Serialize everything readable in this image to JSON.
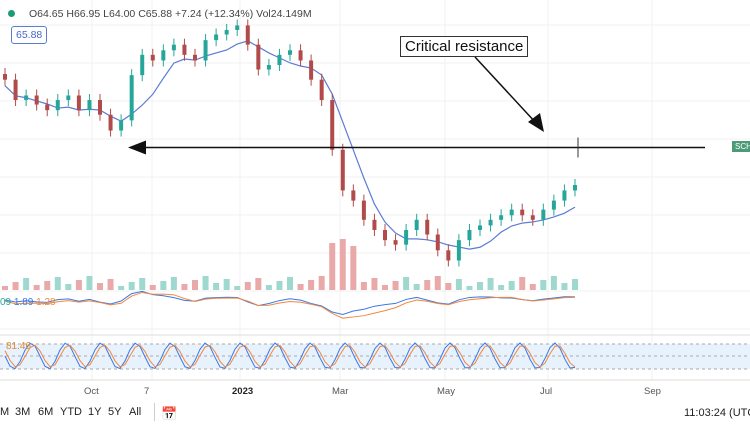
{
  "legend": {
    "open": "O64.65",
    "high": "H66.95",
    "low": "L64.00",
    "close": "C65.88",
    "change": "+7.24 (+12.34%)",
    "volume": "Vol24.149M"
  },
  "last_price": "65.88",
  "annotation": "Critical resistance",
  "symbol_tag": "SCH",
  "macd": {
    "v1": "09",
    "v2": "1.89",
    "v3": "1.28"
  },
  "stoch": {
    "value": "81.46"
  },
  "x_labels": [
    {
      "t": "Oct",
      "x": 92
    },
    {
      "t": "7",
      "x": 152
    },
    {
      "t": "2023",
      "x": 240
    },
    {
      "t": "Mar",
      "x": 340
    },
    {
      "t": "May",
      "x": 445
    },
    {
      "t": "Jul",
      "x": 548
    },
    {
      "t": "Sep",
      "x": 652
    }
  ],
  "ranges": [
    "M",
    "3M",
    "6M",
    "YTD",
    "1Y",
    "5Y",
    "All"
  ],
  "clock": "11:03:24 (UTC",
  "colors": {
    "up": "#26a69a",
    "down": "#b14a4a",
    "ma": "#5b7bd5",
    "macd": "#3b78e7",
    "signal": "#f0883e"
  },
  "resistance_price": 69.2,
  "closes": [
    75.2,
    73.4,
    73.8,
    73.0,
    72.5,
    73.4,
    73.8,
    72.5,
    73.4,
    72.1,
    70.7,
    71.6,
    75.6,
    77.4,
    76.9,
    77.8,
    78.3,
    77.4,
    76.9,
    78.7,
    79.2,
    79.6,
    80.0,
    78.3,
    76.1,
    76.5,
    77.4,
    77.8,
    76.9,
    75.2,
    73.4,
    69.0,
    65.4,
    64.5,
    62.8,
    61.9,
    61.0,
    60.6,
    61.9,
    62.8,
    61.5,
    60.1,
    59.2,
    61.0,
    61.9,
    62.3,
    62.8,
    63.2,
    63.7,
    63.2,
    62.8,
    63.7,
    64.5,
    65.4,
    65.88
  ]
}
